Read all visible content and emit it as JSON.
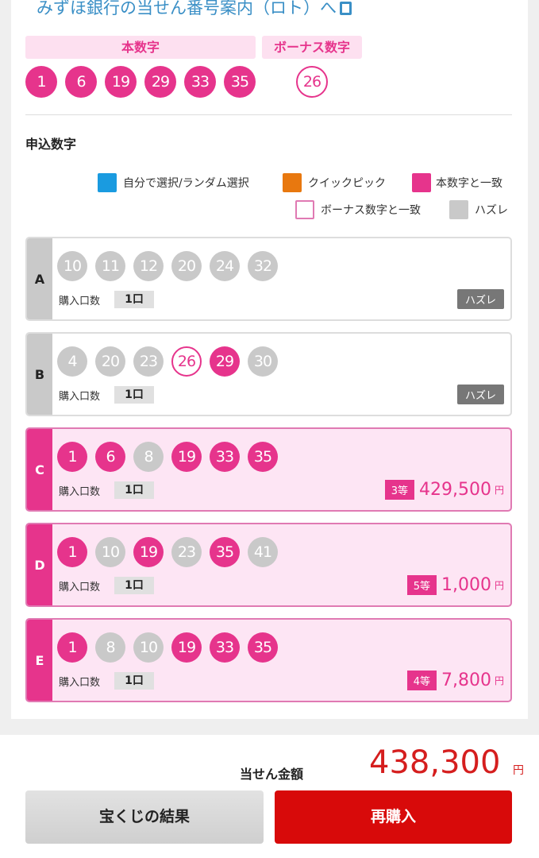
{
  "link_text": "みずほ銀行の当せん番号案内（ロト）へ",
  "winning": {
    "main_label": "本数字",
    "bonus_label": "ボーナス数字",
    "main_numbers": [
      "1",
      "6",
      "19",
      "29",
      "33",
      "35"
    ],
    "bonus_number": "26"
  },
  "section_title": "申込数字",
  "legend": [
    {
      "label": "自分で選択/ランダム選択",
      "color": "#1a9be0"
    },
    {
      "label": "クイックピック",
      "color": "#e8780f"
    },
    {
      "label": "本数字と一致",
      "color": "#e6348c"
    },
    {
      "label": "ボーナス数字と一致",
      "color": "#ffffff"
    },
    {
      "label": "ハズレ",
      "color": "#c9c9c9"
    }
  ],
  "qty_label": "購入口数",
  "tickets": [
    {
      "letter": "A",
      "numbers": [
        [
          "10",
          "miss"
        ],
        [
          "11",
          "miss"
        ],
        [
          "12",
          "miss"
        ],
        [
          "20",
          "miss"
        ],
        [
          "24",
          "miss"
        ],
        [
          "32",
          "miss"
        ]
      ],
      "qty": "1口",
      "result": "ハズレ",
      "win": false
    },
    {
      "letter": "B",
      "numbers": [
        [
          "4",
          "miss"
        ],
        [
          "20",
          "miss"
        ],
        [
          "23",
          "miss"
        ],
        [
          "26",
          "bonus"
        ],
        [
          "29",
          "hit"
        ],
        [
          "30",
          "miss"
        ]
      ],
      "qty": "1口",
      "result": "ハズレ",
      "win": false
    },
    {
      "letter": "C",
      "numbers": [
        [
          "1",
          "hit"
        ],
        [
          "6",
          "hit"
        ],
        [
          "8",
          "miss"
        ],
        [
          "19",
          "hit"
        ],
        [
          "33",
          "hit"
        ],
        [
          "35",
          "hit"
        ]
      ],
      "qty": "1口",
      "rank": "3等",
      "amount": "429,500",
      "yen": "円",
      "win": true
    },
    {
      "letter": "D",
      "numbers": [
        [
          "1",
          "hit"
        ],
        [
          "10",
          "miss"
        ],
        [
          "19",
          "hit"
        ],
        [
          "23",
          "miss"
        ],
        [
          "35",
          "hit"
        ],
        [
          "41",
          "miss"
        ]
      ],
      "qty": "1口",
      "rank": "5等",
      "amount": "1,000",
      "yen": "円",
      "win": true
    },
    {
      "letter": "E",
      "numbers": [
        [
          "1",
          "hit"
        ],
        [
          "8",
          "miss"
        ],
        [
          "10",
          "miss"
        ],
        [
          "19",
          "hit"
        ],
        [
          "33",
          "hit"
        ],
        [
          "35",
          "hit"
        ]
      ],
      "qty": "1口",
      "rank": "4等",
      "amount": "7,800",
      "yen": "円",
      "win": true
    }
  ],
  "total": {
    "label": "当せん金額",
    "amount": "438,300",
    "yen": "円"
  },
  "buttons": {
    "results": "宝くじの結果",
    "rebuy": "再購入"
  }
}
